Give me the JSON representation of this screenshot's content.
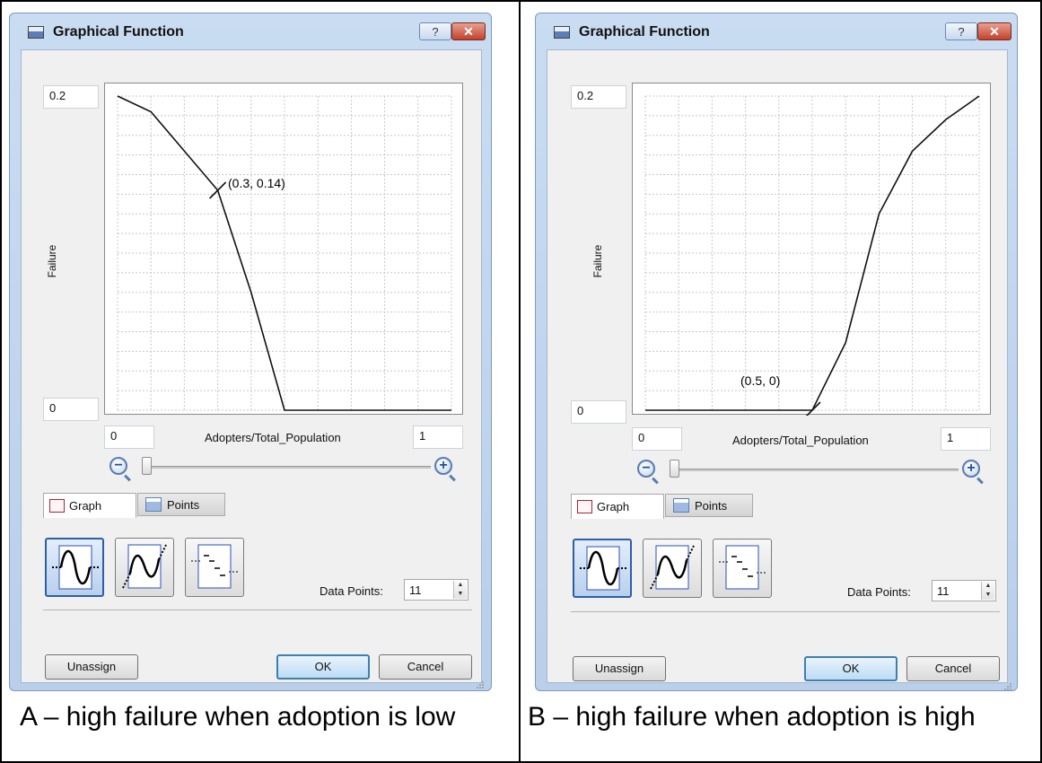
{
  "panels": [
    {
      "dialog": {
        "title": "Graphical Function",
        "help_label": "?",
        "close_label": "✕",
        "y_max": "0.2",
        "y_min": "0",
        "y_axis_label": "Failure",
        "x_min": "0",
        "x_max": "1",
        "x_axis_label": "Adopters/Total_Population",
        "zoom_out_label": "−",
        "zoom_in_label": "+",
        "tabs": [
          {
            "label": "Graph",
            "active": true
          },
          {
            "label": "Points",
            "active": false
          }
        ],
        "data_points_label": "Data Points:",
        "data_points_value": "11",
        "buttons": {
          "unassign": "Unassign",
          "ok": "OK",
          "cancel": "Cancel"
        },
        "annotation": "(0.3, 0.14)"
      },
      "chart_data": {
        "type": "line",
        "x": [
          0,
          0.1,
          0.2,
          0.3,
          0.4,
          0.5,
          0.6,
          0.7,
          0.8,
          0.9,
          1.0
        ],
        "y": [
          0.2,
          0.19,
          0.165,
          0.14,
          0.075,
          0,
          0,
          0,
          0,
          0,
          0
        ],
        "xlim": [
          0,
          1
        ],
        "ylim": [
          0,
          0.2
        ],
        "xlabel": "Adopters/Total_Population",
        "ylabel": "Failure",
        "grid": true,
        "highlight": {
          "x": 0.3,
          "y": 0.14
        }
      },
      "caption": "A – high failure when adoption is low"
    },
    {
      "dialog": {
        "title": "Graphical Function",
        "help_label": "?",
        "close_label": "✕",
        "y_max": "0.2",
        "y_min": "0",
        "y_axis_label": "Failure",
        "x_min": "0",
        "x_max": "1",
        "x_axis_label": "Adopters/Total_Population",
        "zoom_out_label": "−",
        "zoom_in_label": "+",
        "tabs": [
          {
            "label": "Graph",
            "active": true
          },
          {
            "label": "Points",
            "active": false
          }
        ],
        "data_points_label": "Data Points:",
        "data_points_value": "11",
        "buttons": {
          "unassign": "Unassign",
          "ok": "OK",
          "cancel": "Cancel"
        },
        "annotation": "(0.5, 0)"
      },
      "chart_data": {
        "type": "line",
        "x": [
          0,
          0.1,
          0.2,
          0.3,
          0.4,
          0.5,
          0.6,
          0.7,
          0.8,
          0.9,
          1.0
        ],
        "y": [
          0,
          0,
          0,
          0,
          0,
          0,
          0.043,
          0.125,
          0.165,
          0.185,
          0.2
        ],
        "xlim": [
          0,
          1
        ],
        "ylim": [
          0,
          0.2
        ],
        "xlabel": "Adopters/Total_Population",
        "ylabel": "Failure",
        "grid": true,
        "highlight": {
          "x": 0.5,
          "y": 0
        }
      },
      "caption": "B – high failure when adoption is high"
    }
  ]
}
